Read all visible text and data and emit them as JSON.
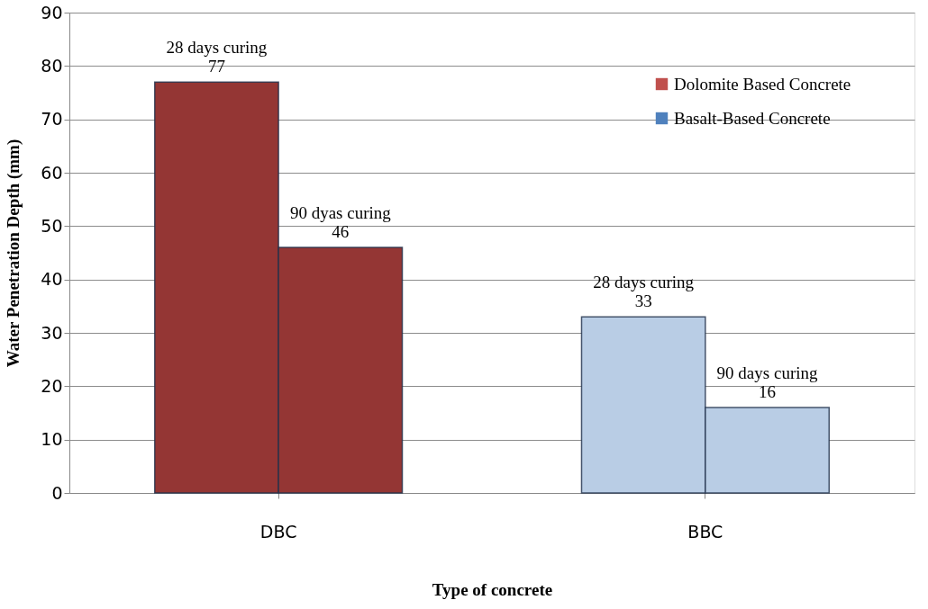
{
  "chart_data": {
    "type": "bar",
    "xlabel": "Type of concrete",
    "ylabel": "Water Penetration Depth (mm)",
    "categories": [
      "DBC",
      "BBC"
    ],
    "series": [
      {
        "colors": [
          "#943634",
          "#b9cde5"
        ],
        "values": [
          77,
          33
        ],
        "value_labels": [
          "28 days curing\n77",
          "28 days curing\n33"
        ]
      },
      {
        "colors": [
          "#943634",
          "#b9cde5"
        ],
        "values": [
          46,
          16
        ],
        "value_labels": [
          "90 dyas curing\n46",
          "90 days curing\n16"
        ]
      },
      {
        "name": "Dolomite Based Concrete",
        "color": "#c0504d",
        "values": [
          null,
          null
        ]
      },
      {
        "name": "Basalt-Based Concrete",
        "color": "#4f81bd",
        "values": [
          null,
          null
        ]
      }
    ],
    "ylim": [
      0,
      90
    ],
    "yticks": [
      0,
      10,
      20,
      30,
      40,
      50,
      60,
      70,
      80,
      90
    ],
    "grid": "y",
    "legend": "top right"
  }
}
